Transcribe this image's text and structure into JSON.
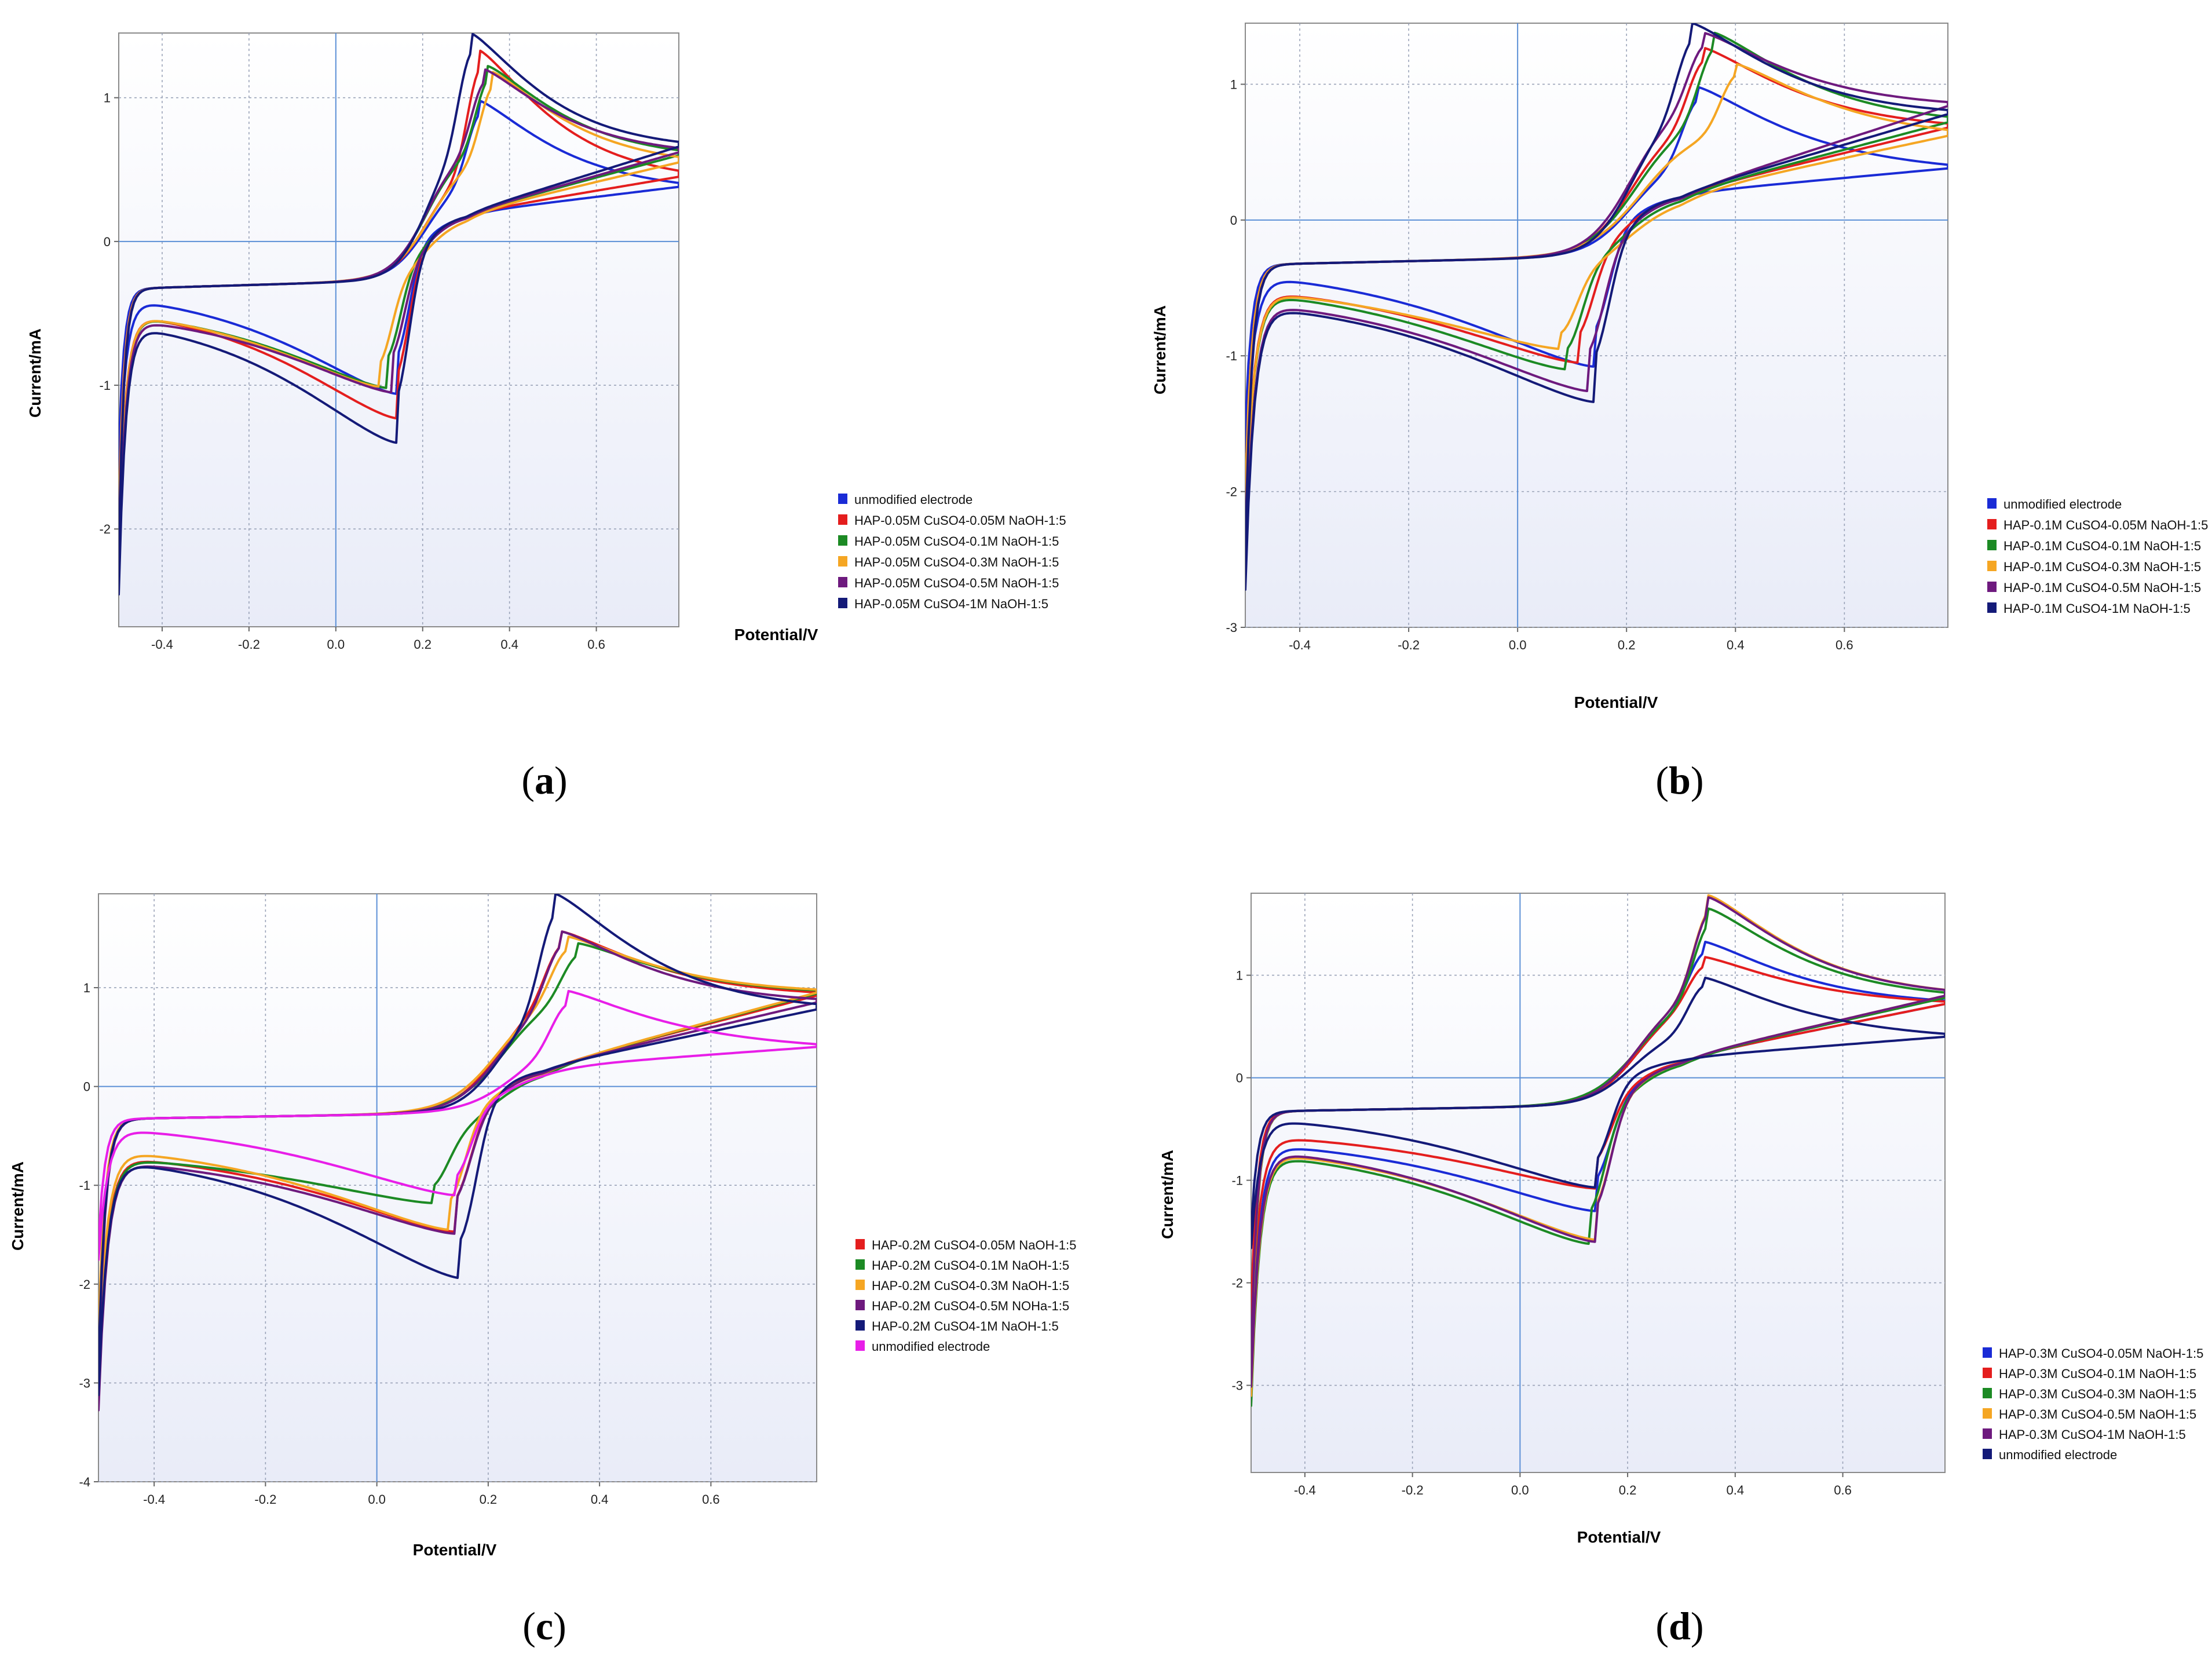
{
  "chart_data": [
    {
      "id": "a",
      "type": "line",
      "caption_letter": "a",
      "xlabel": "Potential/V",
      "ylabel": "Current/mA",
      "xlim": [
        -0.5,
        0.79
      ],
      "ylim": [
        -2.68,
        1.45
      ],
      "xticks": [
        -0.4,
        -0.2,
        0.0,
        0.2,
        0.4,
        0.6
      ],
      "xtick_labels": [
        "-0.4",
        "-0.2",
        "0.0",
        "0.2",
        "0.4",
        "0.6"
      ],
      "yticks": [
        -2,
        -1,
        0,
        1
      ],
      "ytick_labels": [
        "-2",
        "-1",
        "0",
        "1"
      ],
      "grid": true,
      "legend_position": "right",
      "series": [
        {
          "name": "unmodified electrode",
          "color": "#1a2bd6",
          "params": {
            "E0": 0.19,
            "amp": 0.82,
            "w": 0.045,
            "pa": 0.33,
            "pc": 0.14,
            "ipa": 0.98,
            "ipc": -1.06,
            "start": -0.35,
            "end": 0.38,
            "ecap": 0.04
          }
        },
        {
          "name": "HAP-0.05M CuSO4-0.05M NaOH-1:5",
          "color": "#e41e1e",
          "params": {
            "E0": 0.19,
            "amp": 0.85,
            "w": 0.045,
            "pa": 0.33,
            "pc": 0.14,
            "ipa": 1.33,
            "ipc": -1.23,
            "start": -0.45,
            "end": 0.45,
            "ecap": 0.06
          }
        },
        {
          "name": "HAP-0.05M CuSO4-0.1M NaOH-1:5",
          "color": "#1c8a24",
          "params": {
            "E0": 0.19,
            "amp": 0.85,
            "w": 0.045,
            "pa": 0.35,
            "pc": 0.12,
            "ipa": 1.22,
            "ipc": -1.02,
            "start": -0.47,
            "end": 0.6,
            "ecap": 0.1
          }
        },
        {
          "name": "HAP-0.05M CuSO4-0.3M NaOH-1:5",
          "color": "#f5a623",
          "params": {
            "E0": 0.2,
            "amp": 0.85,
            "w": 0.05,
            "pa": 0.36,
            "pc": 0.1,
            "ipa": 1.18,
            "ipc": -1.01,
            "start": -0.46,
            "end": 0.55,
            "ecap": 0.09
          }
        },
        {
          "name": "HAP-0.05M CuSO4-0.5M NaOH-1:5",
          "color": "#6e1a7e",
          "params": {
            "E0": 0.19,
            "amp": 0.85,
            "w": 0.045,
            "pa": 0.34,
            "pc": 0.13,
            "ipa": 1.2,
            "ipc": -1.05,
            "start": -0.5,
            "end": 0.62,
            "ecap": 0.1
          }
        },
        {
          "name": "HAP-0.05M CuSO4-1M NaOH-1:5",
          "color": "#141a78",
          "params": {
            "E0": 0.19,
            "amp": 0.85,
            "w": 0.04,
            "pa": 0.31,
            "pc": 0.14,
            "ipa": 1.45,
            "ipc": -1.4,
            "start": -0.52,
            "end": 0.66,
            "ecap": 0.1
          }
        }
      ]
    },
    {
      "id": "b",
      "type": "line",
      "caption_letter": "b",
      "xlabel": "Potential/V",
      "ylabel": "Current/mA",
      "xlim": [
        -0.5,
        0.79
      ],
      "ylim": [
        -3.0,
        1.45
      ],
      "xticks": [
        -0.4,
        -0.2,
        0.0,
        0.2,
        0.4,
        0.6
      ],
      "xtick_labels": [
        "-0.4",
        "-0.2",
        "0.0",
        "0.2",
        "0.4",
        "0.6"
      ],
      "yticks": [
        -3,
        -2,
        -1,
        0,
        1
      ],
      "ytick_labels": [
        "-3",
        "-2",
        "-1",
        "0",
        "1"
      ],
      "grid": true,
      "legend_position": "right",
      "series": [
        {
          "name": "unmodified electrode",
          "color": "#1a2bd6",
          "params": {
            "E0": 0.19,
            "amp": 0.85,
            "w": 0.045,
            "pa": 0.33,
            "pc": 0.14,
            "ipa": 0.98,
            "ipc": -1.08,
            "start": -0.36,
            "end": 0.38,
            "ecap": 0.04
          }
        },
        {
          "name": "HAP-0.1M CuSO4-0.05M NaOH-1:5",
          "color": "#e41e1e",
          "params": {
            "E0": 0.19,
            "amp": 0.85,
            "w": 0.045,
            "pa": 0.34,
            "pc": 0.11,
            "ipa": 1.27,
            "ipc": -1.05,
            "start": -0.47,
            "end": 0.68,
            "ecap": 0.08
          }
        },
        {
          "name": "HAP-0.1M CuSO4-0.1M NaOH-1:5",
          "color": "#1c8a24",
          "params": {
            "E0": 0.2,
            "amp": 0.85,
            "w": 0.05,
            "pa": 0.36,
            "pc": 0.09,
            "ipa": 1.38,
            "ipc": -1.1,
            "start": -0.48,
            "end": 0.72,
            "ecap": 0.12
          }
        },
        {
          "name": "HAP-0.1M CuSO4-0.3M NaOH-1:5",
          "color": "#f5a623",
          "params": {
            "E0": 0.21,
            "amp": 0.85,
            "w": 0.055,
            "pa": 0.4,
            "pc": 0.08,
            "ipa": 1.15,
            "ipc": -0.95,
            "start": -0.48,
            "end": 0.62,
            "ecap": 0.08
          }
        },
        {
          "name": "HAP-0.1M CuSO4-0.5M NaOH-1:5",
          "color": "#6e1a7e",
          "params": {
            "E0": 0.19,
            "amp": 0.85,
            "w": 0.045,
            "pa": 0.34,
            "pc": 0.13,
            "ipa": 1.38,
            "ipc": -1.26,
            "start": -0.56,
            "end": 0.84,
            "ecap": 0.1
          }
        },
        {
          "name": "HAP-0.1M CuSO4-1M NaOH-1:5",
          "color": "#141a78",
          "params": {
            "E0": 0.19,
            "amp": 0.85,
            "w": 0.04,
            "pa": 0.32,
            "pc": 0.14,
            "ipa": 1.45,
            "ipc": -1.34,
            "start": -0.58,
            "end": 0.78,
            "ecap": 0.1
          }
        }
      ]
    },
    {
      "id": "c",
      "type": "line",
      "caption_letter": "c",
      "xlabel": "Potential/V",
      "ylabel": "Current/mA",
      "xlim": [
        -0.5,
        0.79
      ],
      "ylim": [
        -4.0,
        1.95
      ],
      "xticks": [
        -0.4,
        -0.2,
        0.0,
        0.2,
        0.4,
        0.6
      ],
      "xtick_labels": [
        "-0.4",
        "-0.2",
        "0.0",
        "0.2",
        "0.4",
        "0.6"
      ],
      "yticks": [
        -4,
        -3,
        -2,
        -1,
        0,
        1
      ],
      "ytick_labels": [
        "-4",
        "-3",
        "-2",
        "-1",
        "0",
        "1"
      ],
      "grid": true,
      "legend_position": "right",
      "series": [
        {
          "name": "HAP-0.2M CuSO4-0.05M NaOH-1:5",
          "color": "#e41e1e",
          "params": {
            "E0": 0.2,
            "amp": 0.9,
            "w": 0.045,
            "pa": 0.33,
            "pc": 0.14,
            "ipa": 1.57,
            "ipc": -1.47,
            "start": -0.65,
            "end": 0.92,
            "ecap": 0.15
          }
        },
        {
          "name": "HAP-0.2M CuSO4-0.1M NaOH-1:5",
          "color": "#1c8a24",
          "params": {
            "E0": 0.21,
            "amp": 0.9,
            "w": 0.05,
            "pa": 0.36,
            "pc": 0.1,
            "ipa": 1.45,
            "ipc": -1.18,
            "start": -0.68,
            "end": 0.94,
            "ecap": 0.15
          }
        },
        {
          "name": "HAP-0.2M CuSO4-0.3M NaOH-1:5",
          "color": "#f5a623",
          "params": {
            "E0": 0.2,
            "amp": 0.9,
            "w": 0.05,
            "pa": 0.34,
            "pc": 0.13,
            "ipa": 1.52,
            "ipc": -1.45,
            "start": -0.58,
            "end": 0.95,
            "ecap": 0.12
          }
        },
        {
          "name": "HAP-0.2M CuSO4-0.5M NOHa-1:5",
          "color": "#6e1a7e",
          "params": {
            "E0": 0.2,
            "amp": 0.9,
            "w": 0.045,
            "pa": 0.33,
            "pc": 0.14,
            "ipa": 1.57,
            "ipc": -1.49,
            "start": -0.7,
            "end": 0.85,
            "ecap": 0.15
          }
        },
        {
          "name": "HAP-0.2M CuSO4-1M NaOH-1:5",
          "color": "#141a78",
          "params": {
            "E0": 0.2,
            "amp": 0.9,
            "w": 0.04,
            "pa": 0.32,
            "pc": 0.15,
            "ipa": 1.95,
            "ipc": -1.94,
            "start": -0.66,
            "end": 0.78,
            "ecap": 0.15
          }
        },
        {
          "name": "unmodified electrode",
          "color": "#e81ee8",
          "params": {
            "E0": 0.23,
            "amp": 0.85,
            "w": 0.05,
            "pa": 0.34,
            "pc": 0.14,
            "ipa": 0.97,
            "ipc": -1.1,
            "start": -0.37,
            "end": 0.4,
            "ecap": 0.05
          }
        }
      ]
    },
    {
      "id": "d",
      "type": "line",
      "caption_letter": "d",
      "xlabel": "Potential/V",
      "ylabel": "Current/mA",
      "xlim": [
        -0.5,
        0.79
      ],
      "ylim": [
        -3.85,
        1.8
      ],
      "xticks": [
        -0.4,
        -0.2,
        0.0,
        0.2,
        0.4,
        0.6
      ],
      "xtick_labels": [
        "-0.4",
        "-0.2",
        "0.0",
        "0.2",
        "0.4",
        "0.6"
      ],
      "yticks": [
        -3,
        -2,
        -1,
        0,
        1
      ],
      "ytick_labels": [
        "-3",
        "-2",
        "-1",
        "0",
        "1"
      ],
      "grid": true,
      "legend_position": "bottom-right",
      "series": [
        {
          "name": "HAP-0.3M CuSO4-0.05M NaOH-1:5",
          "color": "#1a2bd6",
          "params": {
            "E0": 0.2,
            "amp": 0.85,
            "w": 0.045,
            "pa": 0.34,
            "pc": 0.14,
            "ipa": 1.33,
            "ipc": -1.3,
            "start": -0.6,
            "end": 0.72,
            "ecap": 0.1
          }
        },
        {
          "name": "HAP-0.3M CuSO4-0.1M NaOH-1:5",
          "color": "#e41e1e",
          "params": {
            "E0": 0.2,
            "amp": 0.85,
            "w": 0.045,
            "pa": 0.34,
            "pc": 0.14,
            "ipa": 1.18,
            "ipc": -1.08,
            "start": -0.53,
            "end": 0.72,
            "ecap": 0.08
          }
        },
        {
          "name": "HAP-0.3M CuSO4-0.3M NaOH-1:5",
          "color": "#1c8a24",
          "params": {
            "E0": 0.2,
            "amp": 0.85,
            "w": 0.05,
            "pa": 0.35,
            "pc": 0.13,
            "ipa": 1.65,
            "ipc": -1.62,
            "start": -0.68,
            "end": 0.78,
            "ecap": 0.12
          }
        },
        {
          "name": "HAP-0.3M CuSO4-0.5M NaOH-1:5",
          "color": "#f5a623",
          "params": {
            "E0": 0.2,
            "amp": 0.85,
            "w": 0.045,
            "pa": 0.35,
            "pc": 0.14,
            "ipa": 1.78,
            "ipc": -1.58,
            "start": -0.66,
            "end": 0.8,
            "ecap": 0.12
          }
        },
        {
          "name": "HAP-0.3M CuSO4-1M NaOH-1:5",
          "color": "#6e1a7e",
          "params": {
            "E0": 0.2,
            "amp": 0.85,
            "w": 0.045,
            "pa": 0.35,
            "pc": 0.14,
            "ipa": 1.76,
            "ipc": -1.6,
            "start": -0.64,
            "end": 0.8,
            "ecap": 0.12
          }
        },
        {
          "name": "unmodified electrode",
          "color": "#141a78",
          "params": {
            "E0": 0.19,
            "amp": 0.85,
            "w": 0.045,
            "pa": 0.34,
            "pc": 0.14,
            "ipa": 0.98,
            "ipc": -1.07,
            "start": -0.35,
            "end": 0.4,
            "ecap": 0.05
          }
        }
      ]
    }
  ]
}
